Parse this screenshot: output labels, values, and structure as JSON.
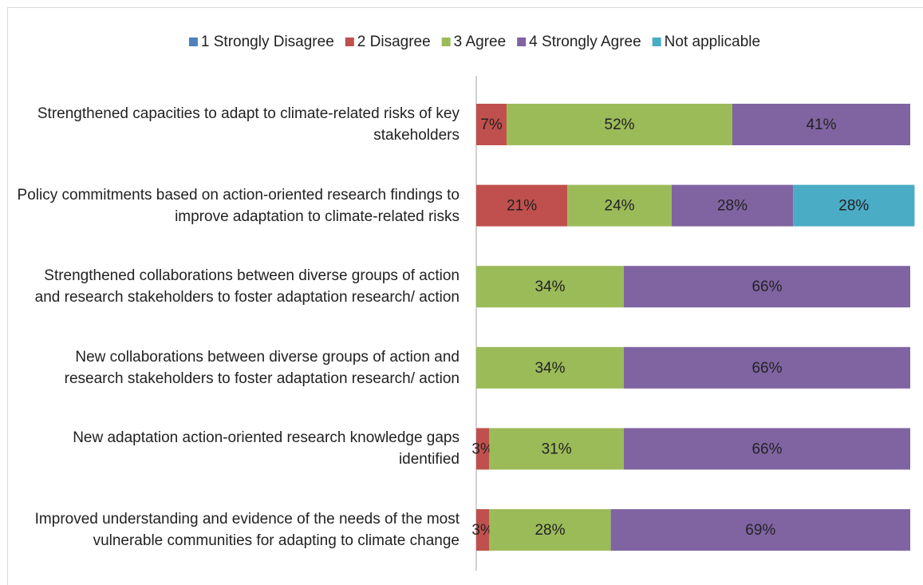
{
  "chart_data": {
    "type": "bar",
    "orientation": "horizontal",
    "stacked": true,
    "categories": [
      "Strengthened capacities to adapt to climate-related risks of key stakeholders",
      "Policy commitments based on action-oriented research findings to improve adaptation to climate-related risks",
      "Strengthened collaborations between diverse groups of action and research stakeholders to foster adaptation research/ action",
      "New collaborations between diverse groups of action and research stakeholders to foster adaptation research/ action",
      "New adaptation action-oriented research knowledge gaps identified",
      "Improved understanding and evidence of the needs of the most vulnerable communities for adapting to climate change"
    ],
    "series": [
      {
        "name": "1 Strongly Disagree",
        "color": "#4f81bd",
        "values": [
          0,
          0,
          0,
          0,
          0,
          0
        ],
        "value_labels": [
          null,
          null,
          null,
          null,
          null,
          null
        ]
      },
      {
        "name": "2 Disagree",
        "color": "#c0504d",
        "values": [
          7,
          21,
          0,
          0,
          3,
          3
        ],
        "value_labels": [
          "7%",
          "21%",
          null,
          null,
          "3%",
          "3%"
        ]
      },
      {
        "name": "3 Agree",
        "color": "#9bbb59",
        "values": [
          52,
          24,
          34,
          34,
          31,
          28
        ],
        "value_labels": [
          "52%",
          "24%",
          "34%",
          "34%",
          "31%",
          "28%"
        ]
      },
      {
        "name": "4 Strongly Agree",
        "color": "#8064a2",
        "values": [
          41,
          28,
          66,
          66,
          66,
          69
        ],
        "value_labels": [
          "41%",
          "28%",
          "66%",
          "66%",
          "66%",
          "69%"
        ]
      },
      {
        "name": "Not applicable",
        "color": "#4bacc6",
        "values": [
          0,
          28,
          0,
          0,
          0,
          0
        ],
        "value_labels": [
          null,
          "28%",
          null,
          null,
          null,
          null
        ]
      }
    ],
    "xlim": [
      0,
      100
    ],
    "legend": "top"
  }
}
